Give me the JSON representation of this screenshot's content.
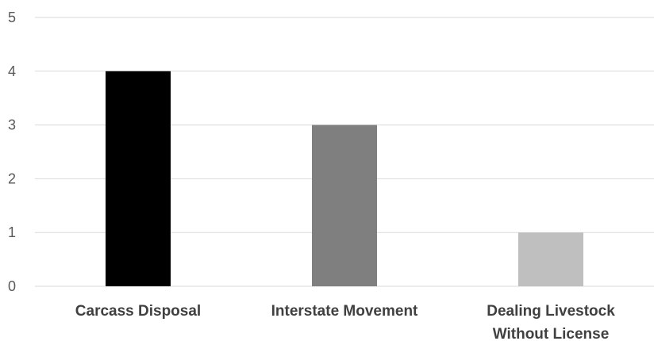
{
  "chart_data": {
    "type": "bar",
    "title": "",
    "xlabel": "",
    "ylabel": "",
    "categories": [
      [
        "Carcass Disposal"
      ],
      [
        "Interstate Movement"
      ],
      [
        "Dealing Livestock",
        "Without License"
      ]
    ],
    "values": [
      4,
      3,
      1
    ],
    "bar_colors": [
      "#000000",
      "#7f7f7f",
      "#bfbfbf"
    ],
    "ylim": [
      0,
      5
    ],
    "yticks": [
      0,
      1,
      2,
      3,
      4,
      5
    ],
    "grid": true,
    "legend": "none"
  }
}
